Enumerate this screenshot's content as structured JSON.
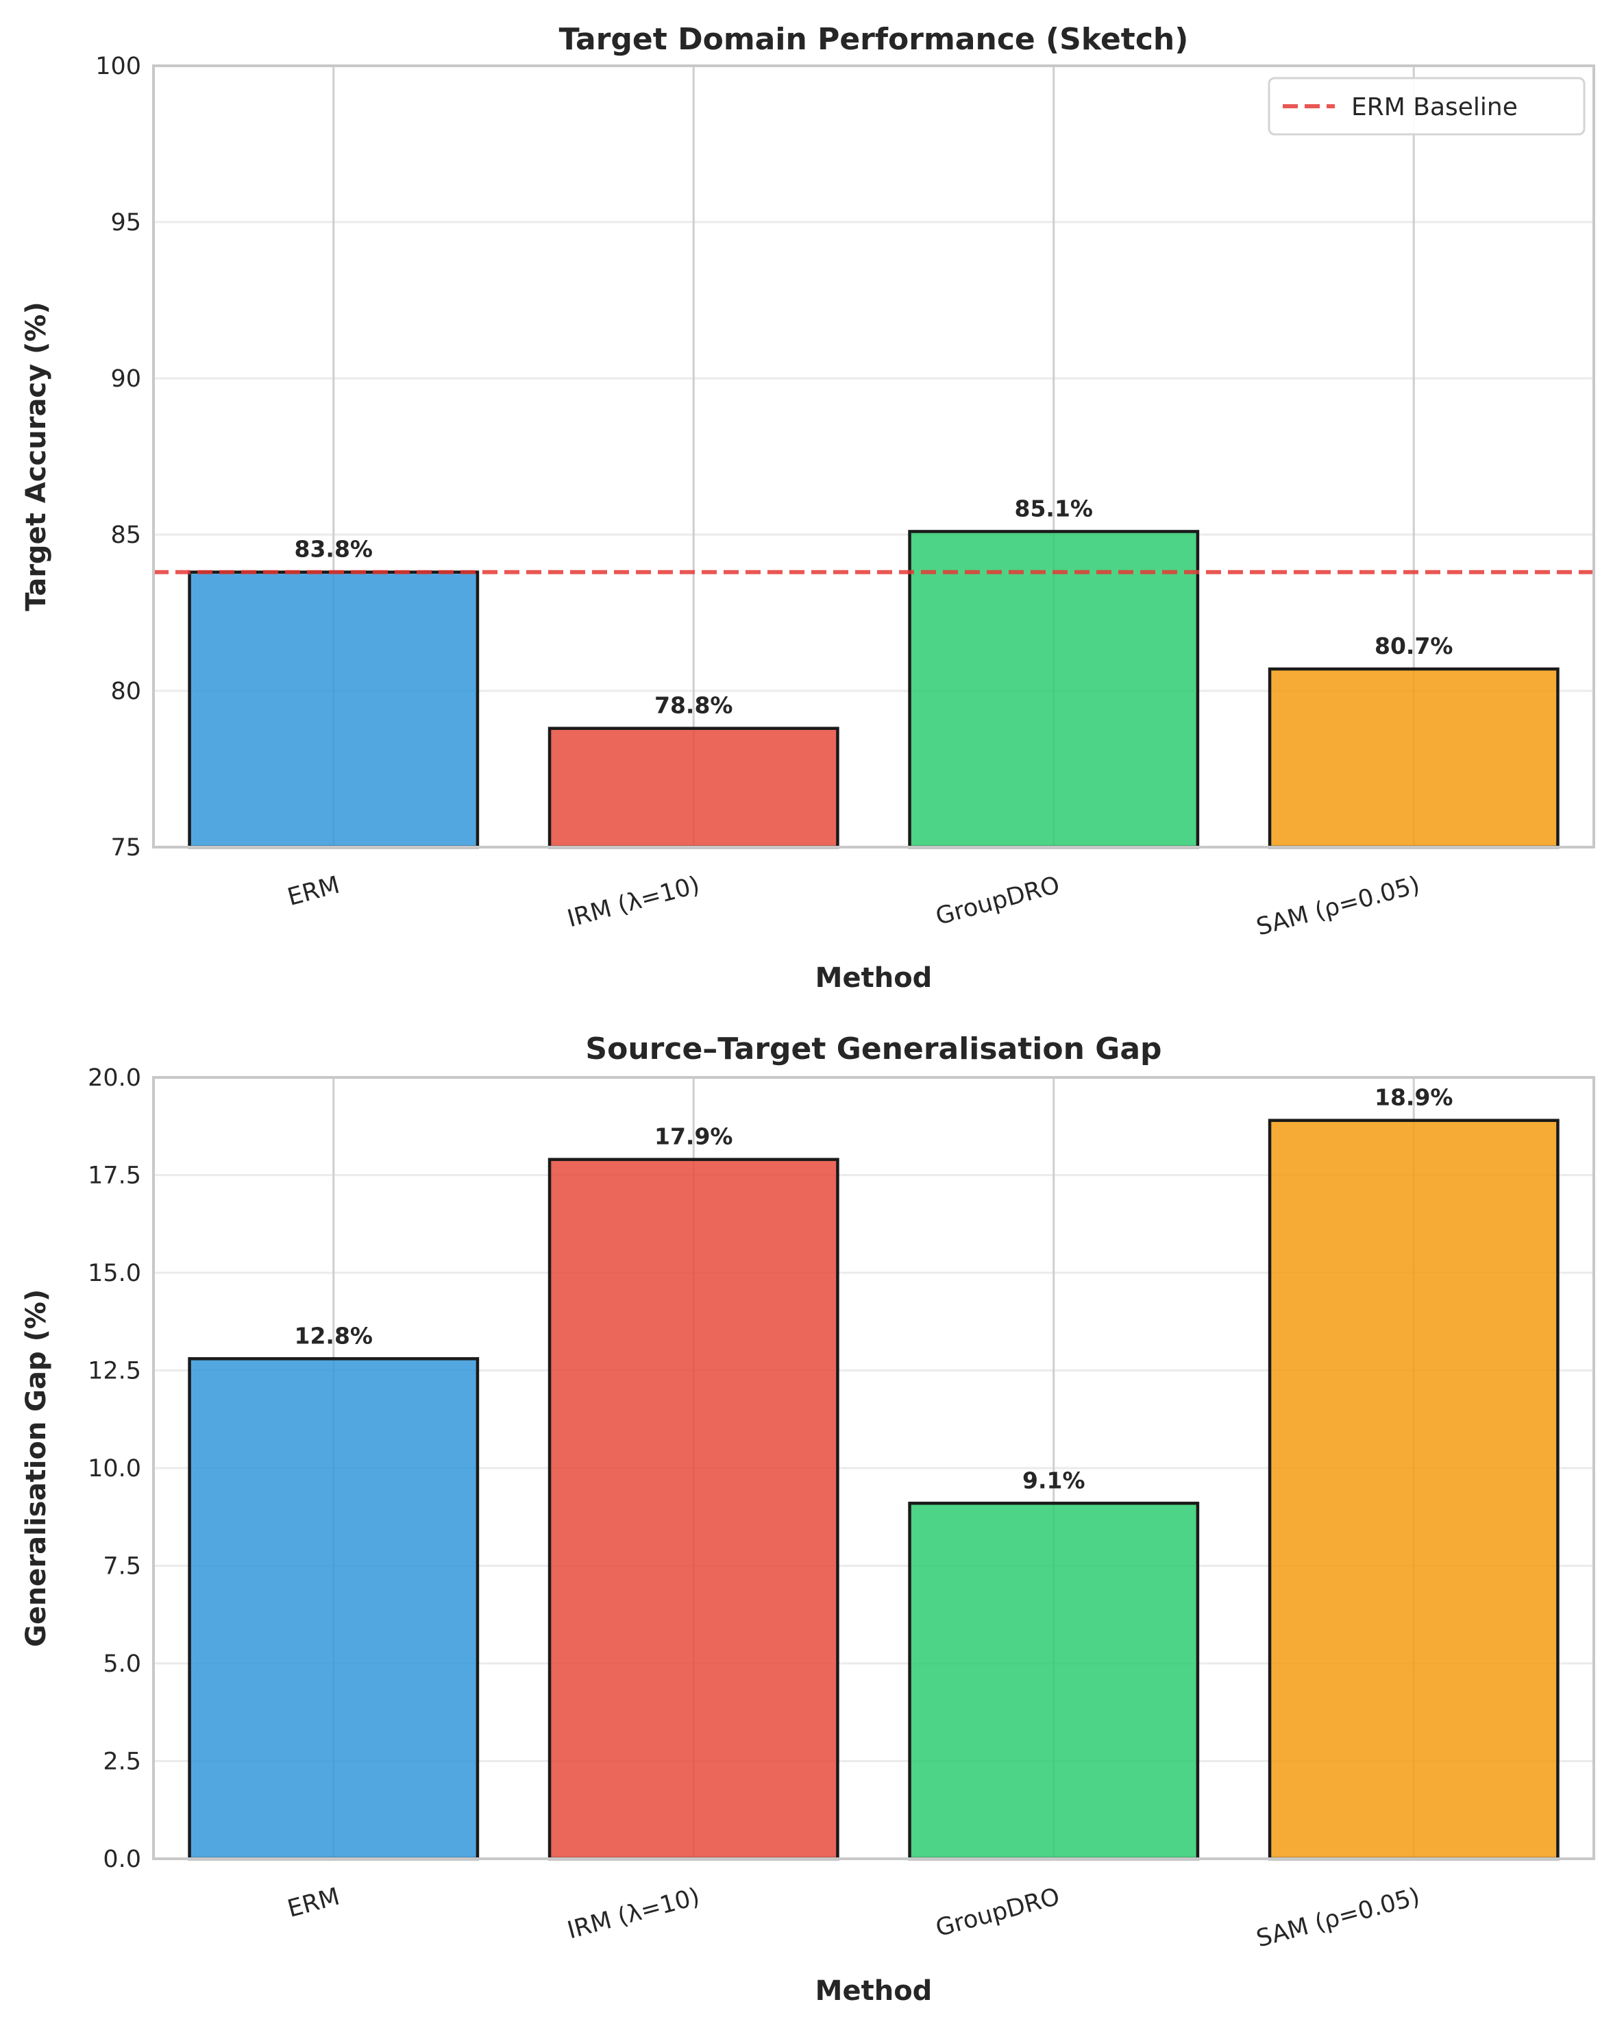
{
  "chart_data": [
    {
      "type": "bar",
      "title": "Target Domain Performance (Sketch)",
      "xlabel": "Method",
      "ylabel": "Target Accuracy (%)",
      "categories": [
        "ERM",
        "IRM (λ=10)",
        "GroupDRO",
        "SAM (ρ=0.05)"
      ],
      "values": [
        83.8,
        78.8,
        85.1,
        80.7
      ],
      "value_labels": [
        "83.8%",
        "78.8%",
        "85.1%",
        "80.7%"
      ],
      "colors": [
        "#3498db",
        "#e74c3c",
        "#2ecc71",
        "#f39c12"
      ],
      "ylim": [
        75,
        100
      ],
      "yticks": [
        75,
        80,
        85,
        90,
        95,
        100
      ],
      "ytick_labels": [
        "75",
        "80",
        "85",
        "90",
        "95",
        "100"
      ],
      "reference_line": {
        "label": "ERM Baseline",
        "value": 83.8,
        "color": "#e53935",
        "style": "dashed"
      },
      "legend": {
        "position": "top-right",
        "entries": [
          "ERM Baseline"
        ]
      },
      "grid": true
    },
    {
      "type": "bar",
      "title": "Source–Target Generalisation Gap",
      "xlabel": "Method",
      "ylabel": "Generalisation Gap (%)",
      "categories": [
        "ERM",
        "IRM (λ=10)",
        "GroupDRO",
        "SAM (ρ=0.05)"
      ],
      "values": [
        12.8,
        17.9,
        9.1,
        18.9
      ],
      "value_labels": [
        "12.8%",
        "17.9%",
        "9.1%",
        "18.9%"
      ],
      "colors": [
        "#3498db",
        "#e74c3c",
        "#2ecc71",
        "#f39c12"
      ],
      "ylim": [
        0,
        20
      ],
      "yticks": [
        0,
        2.5,
        5,
        7.5,
        10,
        12.5,
        15,
        17.5,
        20
      ],
      "ytick_labels": [
        "0.0",
        "2.5",
        "5.0",
        "7.5",
        "10.0",
        "12.5",
        "15.0",
        "17.5",
        "20.0"
      ],
      "grid": true
    }
  ]
}
